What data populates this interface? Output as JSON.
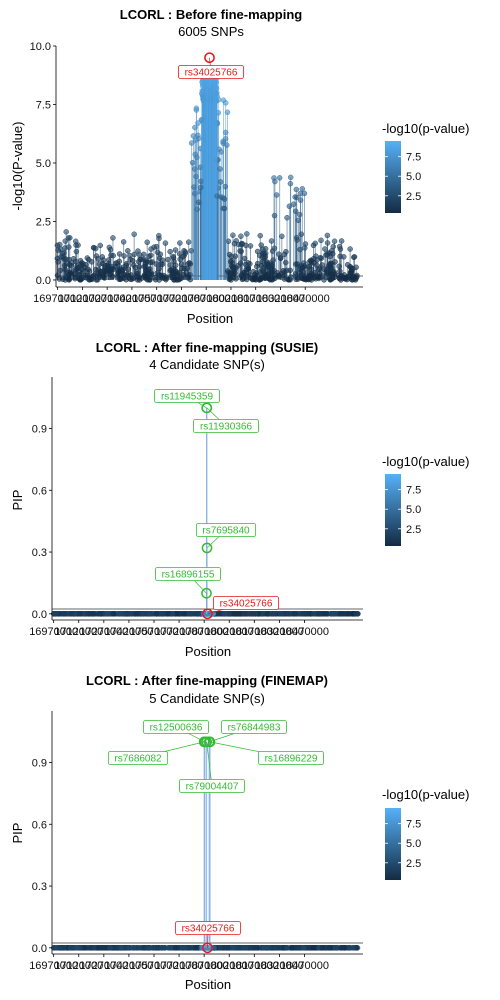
{
  "chart_data": [
    {
      "type": "scatter",
      "title": "LCORL : Before fine-mapping",
      "subtitle": "6005 SNPs",
      "xlabel": "Position",
      "ylabel": "-log10(P-value)",
      "ylim": [
        -0.3,
        10.0
      ],
      "y_ticks": [
        0.0,
        2.5,
        5.0,
        7.5,
        10.0
      ],
      "y_tick_labels": [
        "0.0",
        "2.5",
        "5.0",
        "7.5",
        "10.0"
      ],
      "xlim": [
        16960000,
        18820000
      ],
      "x_ticks": [
        16970000,
        17120000,
        17270000,
        17420000,
        17570000,
        17720000,
        17870000,
        18020000,
        18170000,
        18320000,
        18470000
      ],
      "x_tick_labels": [
        "16970000",
        "17120000",
        "17270000",
        "17420000",
        "17570000",
        "17720000",
        "17870000",
        "18020000",
        "18170000",
        "18320000",
        "18470000"
      ],
      "legend_title": "-log10(p-value)",
      "legend_ticks": [
        "2.5",
        "5.0",
        "7.5"
      ],
      "legend_placement": "right",
      "color_scale": [
        "#132b43",
        "#56b1f7"
      ],
      "highlight": [
        {
          "label": "rs34025766",
          "x": 17890000,
          "y": 9.5,
          "color": "#e41a1c"
        }
      ]
    },
    {
      "type": "scatter",
      "title": "LCORL : After fine-mapping (SUSIE)",
      "subtitle": "4 Candidate SNP(s)",
      "xlabel": "Position",
      "ylabel": "PIP",
      "ylim": [
        -0.03,
        1.15
      ],
      "y_ticks": [
        0.0,
        0.3,
        0.6,
        0.9
      ],
      "y_tick_labels": [
        "0.0",
        "0.3",
        "0.6",
        "0.9"
      ],
      "xlim": [
        16960000,
        18820000
      ],
      "x_ticks": [
        16970000,
        17120000,
        17270000,
        17420000,
        17570000,
        17720000,
        17870000,
        18020000,
        18170000,
        18320000,
        18470000
      ],
      "x_tick_labels": [
        "16970000",
        "17120000",
        "17270000",
        "17420000",
        "17570000",
        "17720000",
        "17870000",
        "18020000",
        "18170000",
        "18320000",
        "18470000"
      ],
      "legend_title": "-log10(p-value)",
      "legend_ticks": [
        "2.5",
        "5.0",
        "7.5"
      ],
      "legend_placement": "right",
      "color_scale": [
        "#132b43",
        "#56b1f7"
      ],
      "highlight": [
        {
          "label": "rs11945359",
          "x": 17885000,
          "y": 1.0,
          "color": "#33bb33"
        },
        {
          "label": "rs11930366",
          "x": 17886000,
          "y": 1.0,
          "color": "#33bb33"
        },
        {
          "label": "rs7695840",
          "x": 17887000,
          "y": 0.32,
          "color": "#33bb33"
        },
        {
          "label": "rs16896155",
          "x": 17884000,
          "y": 0.1,
          "color": "#33bb33"
        },
        {
          "label": "rs34025766",
          "x": 17890000,
          "y": 0.0,
          "color": "#e41a1c"
        }
      ]
    },
    {
      "type": "scatter",
      "title": "LCORL : After fine-mapping (FINEMAP)",
      "subtitle": "5 Candidate SNP(s)",
      "xlabel": "Position",
      "ylabel": "PIP",
      "ylim": [
        -0.03,
        1.15
      ],
      "y_ticks": [
        0.0,
        0.3,
        0.6,
        0.9
      ],
      "y_tick_labels": [
        "0.0",
        "0.3",
        "0.6",
        "0.9"
      ],
      "xlim": [
        16960000,
        18820000
      ],
      "x_ticks": [
        16970000,
        17120000,
        17270000,
        17420000,
        17570000,
        17720000,
        17870000,
        18020000,
        18170000,
        18320000,
        18470000
      ],
      "x_tick_labels": [
        "16970000",
        "17120000",
        "17270000",
        "17420000",
        "17570000",
        "17720000",
        "17870000",
        "18020000",
        "18170000",
        "18320000",
        "18470000"
      ],
      "legend_title": "-log10(p-value)",
      "legend_ticks": [
        "2.5",
        "5.0",
        "7.5"
      ],
      "legend_placement": "right",
      "color_scale": [
        "#132b43",
        "#56b1f7"
      ],
      "highlight": [
        {
          "label": "rs12500636",
          "x": 17875000,
          "y": 1.0,
          "color": "#33bb33"
        },
        {
          "label": "rs76844983",
          "x": 17900000,
          "y": 1.0,
          "color": "#33bb33"
        },
        {
          "label": "rs7686082",
          "x": 17870000,
          "y": 1.0,
          "color": "#33bb33"
        },
        {
          "label": "rs16896229",
          "x": 17905000,
          "y": 1.0,
          "color": "#33bb33"
        },
        {
          "label": "rs79004407",
          "x": 17885000,
          "y": 1.0,
          "color": "#33bb33"
        },
        {
          "label": "rs34025766",
          "x": 17890000,
          "y": 0.0,
          "color": "#e41a1c"
        }
      ]
    }
  ]
}
